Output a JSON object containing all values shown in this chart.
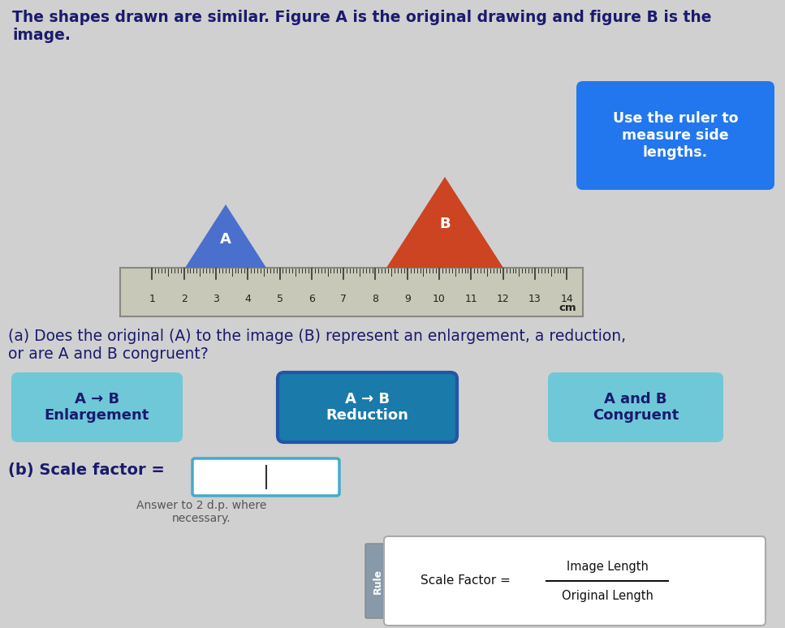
{
  "bg_color": "#d0d0d0",
  "title_text": "The shapes drawn are similar. Figure A is the original drawing and figure B is the\nimage.",
  "title_fontsize": 13.5,
  "title_color": "#1a1a6e",
  "triangle_A_color": "#4a6fcc",
  "triangle_B_color": "#cc4422",
  "triangle_A_label": "A",
  "triangle_B_label": "B",
  "hint_box_color": "#2277ee",
  "hint_text": "Use the ruler to\nmeasure side\nlengths.",
  "hint_text_color": "#ffffff",
  "question_a_text": "(a) Does the original (A) to the image (B) represent an enlargement, a reduction,\nor are A and B congruent?",
  "btn_enlargement_text": "A → B\nEnlargement",
  "btn_reduction_text": "A → B\nReduction",
  "btn_congruent_text": "A and B\nCongruent",
  "btn_color_inactive": "#6ec8d8",
  "btn_color_active": "#1a7aaa",
  "question_b_text": "(b) Scale factor =",
  "answer_hint": "Answer to 2 d.p. where\nnecessary.",
  "rule_box_text": "Scale Factor =",
  "rule_formula_num": "Image Length",
  "rule_formula_den": "Original Length",
  "rule_label": "Rule",
  "ruler_numbers": [
    1,
    2,
    3,
    4,
    5,
    6,
    7,
    8,
    9,
    10,
    11,
    12,
    13,
    14
  ]
}
